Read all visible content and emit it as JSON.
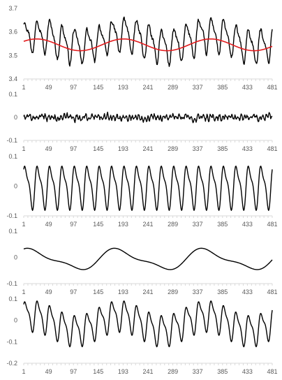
{
  "chart_data": [
    {
      "type": "line",
      "xlim": [
        1,
        481
      ],
      "ylim": [
        3.4,
        3.7
      ],
      "yticks": [
        3.4,
        3.5,
        3.6,
        3.7
      ],
      "ytick_labels": [
        "3.4",
        "3.5",
        "3.6",
        "3.7"
      ],
      "xticks": [
        1,
        49,
        97,
        145,
        193,
        241,
        289,
        337,
        385,
        433,
        481
      ],
      "xtick_labels": [
        "1",
        "49",
        "97",
        "145",
        "193",
        "241",
        "289",
        "337",
        "385",
        "433",
        "481"
      ],
      "grid": false,
      "series": [
        {
          "color": "#000000",
          "kind": "periodic-with-noise",
          "level": 3.565,
          "components": [
            {
              "period": 24,
              "amplitude": 0.065,
              "phase": 0.3
            },
            {
              "period": 12,
              "amplitude": 0.022,
              "phase": 1.1
            },
            {
              "period": 168,
              "amplitude": 0.025,
              "phase": 0.6
            }
          ],
          "noise": 0.012
        },
        {
          "color": "#e31a1c",
          "kind": "trend",
          "level": 3.545,
          "components": [
            {
              "period": 168,
              "amplitude": 0.025,
              "phase": 0.6
            }
          ],
          "noise": 0
        }
      ]
    },
    {
      "type": "line",
      "xlim": [
        1,
        481
      ],
      "ylim": [
        -0.1,
        0.1
      ],
      "yticks": [
        -0.1,
        0,
        0.1
      ],
      "ytick_labels": [
        "-0.1",
        "0",
        "0.1"
      ],
      "xticks": [
        1,
        49,
        97,
        145,
        193,
        241,
        289,
        337,
        385,
        433,
        481
      ],
      "xtick_labels": [
        "1",
        "49",
        "97",
        "145",
        "193",
        "241",
        "289",
        "337",
        "385",
        "433",
        "481"
      ],
      "grid": false,
      "series": [
        {
          "color": "#000000",
          "kind": "residual",
          "level": 0,
          "components": [
            {
              "period": 6,
              "amplitude": 0.008,
              "phase": 0.4
            }
          ],
          "noise": 0.012
        }
      ]
    },
    {
      "type": "line",
      "xlim": [
        1,
        481
      ],
      "ylim": [
        -0.1,
        0.1
      ],
      "yticks": [
        -0.1,
        0,
        0.1
      ],
      "ytick_labels": [
        "-0.1",
        "0",
        "0.1"
      ],
      "xticks": [
        1,
        49,
        97,
        145,
        193,
        241,
        289,
        337,
        385,
        433,
        481
      ],
      "xtick_labels": [
        "1",
        "49",
        "97",
        "145",
        "193",
        "241",
        "289",
        "337",
        "385",
        "433",
        "481"
      ],
      "grid": false,
      "series": [
        {
          "color": "#000000",
          "kind": "daily-seasonal",
          "level": 0,
          "components": [
            {
              "period": 24,
              "amplitude": 0.065,
              "phase": 0.3
            },
            {
              "period": 12,
              "amplitude": 0.022,
              "phase": 1.1
            }
          ],
          "noise": 0
        }
      ]
    },
    {
      "type": "line",
      "xlim": [
        1,
        481
      ],
      "ylim": [
        -0.1,
        0.1
      ],
      "yticks": [
        -0.1,
        0,
        0.1
      ],
      "ytick_labels": [
        "-0.1",
        "0",
        "0.1"
      ],
      "xticks": [
        1,
        49,
        97,
        145,
        193,
        241,
        289,
        337,
        385,
        433,
        481
      ],
      "xtick_labels": [
        "1",
        "49",
        "97",
        "145",
        "193",
        "241",
        "289",
        "337",
        "385",
        "433",
        "481"
      ],
      "grid": false,
      "series": [
        {
          "color": "#000000",
          "kind": "weekly-seasonal",
          "level": -0.008,
          "components": [
            {
              "period": 168,
              "amplitude": 0.035,
              "phase": 0.9
            },
            {
              "period": 84,
              "amplitude": 0.012,
              "phase": 1.5
            }
          ],
          "noise": 0
        }
      ]
    },
    {
      "type": "line",
      "xlim": [
        1,
        481
      ],
      "ylim": [
        -0.2,
        0.1
      ],
      "yticks": [
        -0.2,
        -0.1,
        0,
        0.1
      ],
      "ytick_labels": [
        "-0.2",
        "-0.1",
        "0",
        "0.1"
      ],
      "xticks": [
        1,
        49,
        97,
        145,
        193,
        241,
        289,
        337,
        385,
        433,
        481
      ],
      "xtick_labels": [
        "1",
        "49",
        "97",
        "145",
        "193",
        "241",
        "289",
        "337",
        "385",
        "433",
        "481"
      ],
      "grid": false,
      "series": [
        {
          "color": "#000000",
          "kind": "combined-seasonal",
          "level": -0.01,
          "components": [
            {
              "period": 24,
              "amplitude": 0.065,
              "phase": 0.3
            },
            {
              "period": 12,
              "amplitude": 0.022,
              "phase": 1.1
            },
            {
              "period": 168,
              "amplitude": 0.035,
              "phase": 0.9
            }
          ],
          "noise": 0
        }
      ]
    }
  ]
}
